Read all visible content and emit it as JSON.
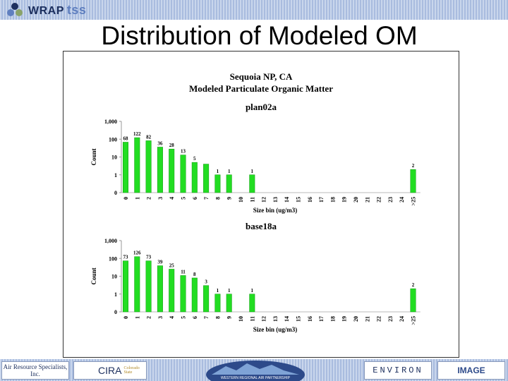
{
  "header": {
    "brand_main": "WRAP",
    "brand_sub": "tss"
  },
  "slide_title": "Distribution of Modeled OM",
  "figure": {
    "site": "Sequoia NP, CA",
    "subtitle": "Modeled Particulate Organic Matter"
  },
  "colors": {
    "bar": "#22dd22",
    "bar_edge": "#119911",
    "top_stripe": "#b8c8e6"
  },
  "chart_data": [
    {
      "type": "bar",
      "title": "plan02a",
      "xlabel": "Size bin (ug/m3)",
      "ylabel": "Count",
      "yscale": "log",
      "yticks": [
        "0",
        "1",
        "10",
        "100",
        "1,000"
      ],
      "categories": [
        "0",
        "1",
        "2",
        "3",
        "4",
        "5",
        "6",
        "7",
        "8",
        "9",
        "10",
        "11",
        "12",
        "13",
        "14",
        "15",
        "16",
        "17",
        "18",
        "19",
        "20",
        "21",
        "22",
        "23",
        "24",
        ">25"
      ],
      "values": [
        68,
        122,
        82,
        36,
        28,
        13,
        5,
        4,
        1,
        1,
        0,
        1,
        0,
        0,
        0,
        0,
        0,
        0,
        0,
        0,
        0,
        0,
        0,
        0,
        0,
        2
      ],
      "labels": [
        "68",
        "122",
        "82",
        "36",
        "28",
        "13",
        "5",
        "",
        "1",
        "1",
        "",
        "1",
        "",
        "",
        "",
        "",
        "",
        "",
        "",
        "",
        "",
        "",
        "",
        "",
        "",
        "2"
      ]
    },
    {
      "type": "bar",
      "title": "base18a",
      "xlabel": "Size bin (ug/m3)",
      "ylabel": "Count",
      "yscale": "log",
      "yticks": [
        "0",
        "1",
        "10",
        "100",
        "1,000"
      ],
      "categories": [
        "0",
        "1",
        "2",
        "3",
        "4",
        "5",
        "6",
        "7",
        "8",
        "9",
        "10",
        "11",
        "12",
        "13",
        "14",
        "15",
        "16",
        "17",
        "18",
        "19",
        "20",
        "21",
        "22",
        "23",
        "24",
        ">25"
      ],
      "values": [
        73,
        126,
        73,
        39,
        25,
        11,
        8,
        3,
        1,
        1,
        0,
        1,
        0,
        0,
        0,
        0,
        0,
        0,
        0,
        0,
        0,
        0,
        0,
        0,
        0,
        2
      ],
      "labels": [
        "73",
        "126",
        "73",
        "39",
        "25",
        "11",
        "8",
        "3",
        "1",
        "1",
        "",
        "1",
        "",
        "",
        "",
        "",
        "",
        "",
        "",
        "",
        "",
        "",
        "",
        "",
        "",
        "2"
      ]
    }
  ],
  "footer": {
    "logos": [
      "Air Resource Specialists, Inc.",
      "CIRA",
      "Colorado State",
      "WESTERN REGIONAL AIR PARTNERSHIP",
      "ENVIRON",
      "IMAGE"
    ]
  }
}
